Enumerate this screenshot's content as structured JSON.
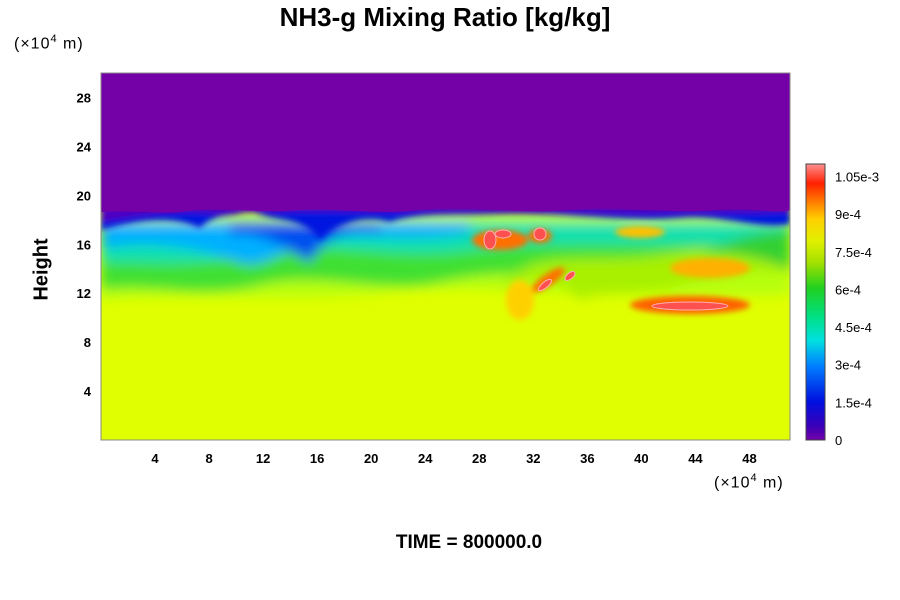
{
  "chart_data": {
    "type": "heatmap",
    "title": "NH3-g Mixing Ratio [kg/kg]",
    "ylabel": "Height",
    "xlabel": "",
    "x_unit": "(×10⁴ m)",
    "y_unit": "(×10⁴ m)",
    "x_ticks": [
      4,
      8,
      12,
      16,
      20,
      24,
      28,
      32,
      36,
      40,
      44,
      48
    ],
    "y_ticks": [
      4,
      8,
      12,
      16,
      20,
      24,
      28
    ],
    "xlim": [
      0,
      51
    ],
    "ylim": [
      0,
      30
    ],
    "colorbar": {
      "range": [
        0,
        0.0011
      ],
      "tick_values": [
        0,
        0.00015,
        0.0003,
        0.00045,
        0.0006,
        0.00075,
        0.0009,
        0.00105
      ],
      "tick_labels": [
        "0",
        "1.5e-4",
        "3e-4",
        "4.5e-4",
        "6e-4",
        "7.5e-4",
        "9e-4",
        "1.05e-3"
      ]
    },
    "field_summary": {
      "upper_layer": {
        "height_range": [
          18,
          30
        ],
        "value": 0
      },
      "lower_layer": {
        "height_range": [
          0,
          11
        ],
        "value": 0.00078
      },
      "mixing_zone": {
        "height_range": [
          11,
          18.5
        ],
        "value_range": [
          5e-05,
          0.0011
        ]
      }
    },
    "time_label": "TIME = 800000.0"
  }
}
